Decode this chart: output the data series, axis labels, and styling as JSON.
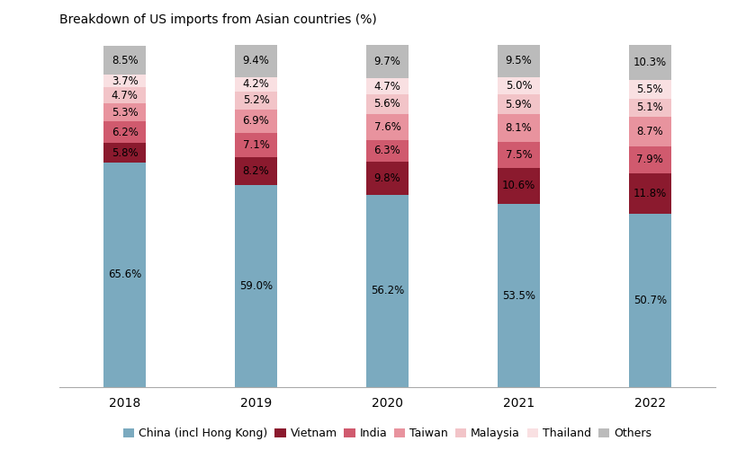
{
  "title": "Breakdown of US imports from Asian countries (%)",
  "years": [
    "2018",
    "2019",
    "2020",
    "2021",
    "2022"
  ],
  "categories": [
    "China (incl Hong Kong)",
    "Vietnam",
    "India",
    "Taiwan",
    "Malaysia",
    "Thailand",
    "Others"
  ],
  "values": {
    "China (incl Hong Kong)": [
      65.6,
      59.0,
      56.2,
      53.5,
      50.7
    ],
    "Vietnam": [
      5.8,
      8.2,
      9.8,
      10.6,
      11.8
    ],
    "India": [
      6.2,
      7.1,
      6.3,
      7.5,
      7.9
    ],
    "Taiwan": [
      5.3,
      6.9,
      7.6,
      8.1,
      8.7
    ],
    "Malaysia": [
      4.7,
      5.2,
      5.6,
      5.9,
      5.1
    ],
    "Thailand": [
      3.7,
      4.2,
      4.7,
      5.0,
      5.5
    ],
    "Others": [
      8.5,
      9.4,
      9.7,
      9.5,
      10.3
    ]
  },
  "colors": {
    "China (incl Hong Kong)": "#7BAABF",
    "Vietnam": "#8B1A2E",
    "India": "#D05A6E",
    "Taiwan": "#E8939E",
    "Malaysia": "#F2C4C8",
    "Thailand": "#F9E0E2",
    "Others": "#BBBBBB"
  },
  "bar_width": 0.32,
  "figsize": [
    8.2,
    5.01
  ],
  "dpi": 100,
  "background_color": "#FFFFFF",
  "title_fontsize": 10,
  "label_fontsize": 8.5,
  "legend_fontsize": 9,
  "tick_fontsize": 10,
  "ylim": [
    0,
    100
  ]
}
